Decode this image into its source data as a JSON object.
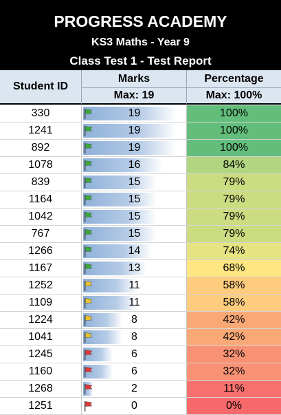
{
  "header": {
    "school": "PROGRESS ACADEMY",
    "course": "KS3 Maths - Year 9",
    "report": "Class Test 1 - Test Report"
  },
  "columns": {
    "student_id": "Student ID",
    "marks": "Marks",
    "marks_max": "Max: 19",
    "percentage": "Percentage",
    "percentage_max": "Max: 100%"
  },
  "max_marks": 19,
  "rows": [
    {
      "id": "330",
      "marks": "19",
      "pct": "100%",
      "flag": "green",
      "pct_color": "#63be7b"
    },
    {
      "id": "1241",
      "marks": "19",
      "pct": "100%",
      "flag": "green",
      "pct_color": "#63be7b"
    },
    {
      "id": "892",
      "marks": "19",
      "pct": "100%",
      "flag": "green",
      "pct_color": "#63be7b"
    },
    {
      "id": "1078",
      "marks": "16",
      "pct": "84%",
      "flag": "green",
      "pct_color": "#b1d580"
    },
    {
      "id": "839",
      "marks": "15",
      "pct": "79%",
      "flag": "green",
      "pct_color": "#cbdc81"
    },
    {
      "id": "1164",
      "marks": "15",
      "pct": "79%",
      "flag": "green",
      "pct_color": "#cbdc81"
    },
    {
      "id": "1042",
      "marks": "15",
      "pct": "79%",
      "flag": "green",
      "pct_color": "#cbdc81"
    },
    {
      "id": "767",
      "marks": "15",
      "pct": "79%",
      "flag": "green",
      "pct_color": "#cbdc81"
    },
    {
      "id": "1266",
      "marks": "14",
      "pct": "74%",
      "flag": "green",
      "pct_color": "#e5e382"
    },
    {
      "id": "1167",
      "marks": "13",
      "pct": "68%",
      "flag": "green",
      "pct_color": "#fee682"
    },
    {
      "id": "1252",
      "marks": "11",
      "pct": "58%",
      "flag": "yellow",
      "pct_color": "#fdcc7e"
    },
    {
      "id": "1109",
      "marks": "11",
      "pct": "58%",
      "flag": "yellow",
      "pct_color": "#fdcc7e"
    },
    {
      "id": "1224",
      "marks": "8",
      "pct": "42%",
      "flag": "yellow",
      "pct_color": "#fba877"
    },
    {
      "id": "1041",
      "marks": "8",
      "pct": "42%",
      "flag": "yellow",
      "pct_color": "#fba877"
    },
    {
      "id": "1245",
      "marks": "6",
      "pct": "32%",
      "flag": "red",
      "pct_color": "#f99274"
    },
    {
      "id": "1160",
      "marks": "6",
      "pct": "32%",
      "flag": "red",
      "pct_color": "#f99274"
    },
    {
      "id": "1268",
      "marks": "2",
      "pct": "11%",
      "flag": "red",
      "pct_color": "#f8706d"
    },
    {
      "id": "1251",
      "marks": "0",
      "pct": "0%",
      "flag": "red",
      "pct_color": "#f8696b"
    }
  ],
  "flag_colors": {
    "green": "#3aa83a",
    "yellow": "#e8c32e",
    "red": "#e03838"
  }
}
